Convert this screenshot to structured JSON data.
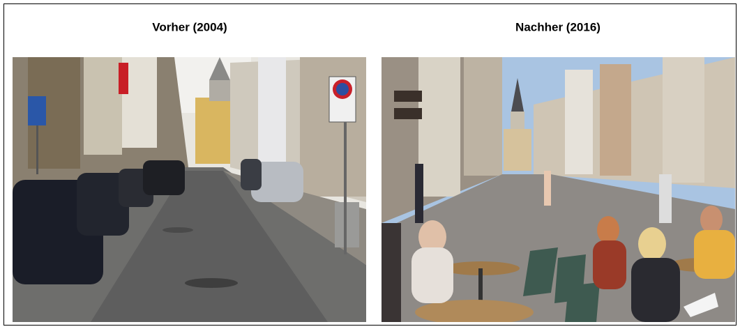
{
  "panels": [
    {
      "title": "Vorher (2004)"
    },
    {
      "title": "Nachher (2016)"
    }
  ]
}
